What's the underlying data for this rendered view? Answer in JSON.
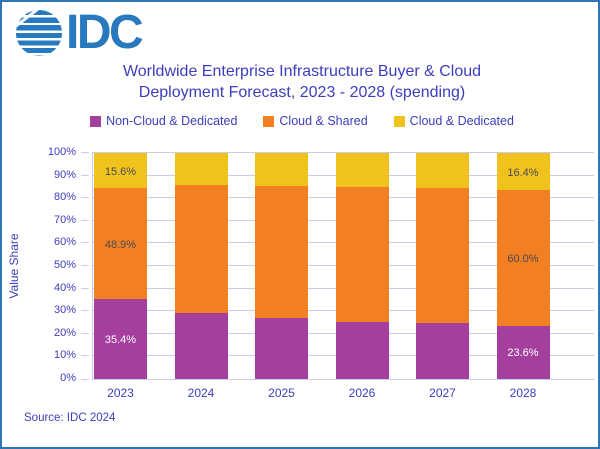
{
  "logo": {
    "text": "IDC"
  },
  "title": {
    "line1": "Worldwide Enterprise Infrastructure Buyer & Cloud",
    "line2": "Deployment Forecast, 2023 - 2028 (spending)"
  },
  "source": "Source: IDC 2024",
  "colors": {
    "border": "#2E75B6",
    "logo_blue": "#2879BD",
    "text_blue": "#3D3DBD",
    "gridline": "#C9CCEE",
    "purple": "#A53F9E",
    "orange": "#F28022",
    "yellow": "#EFC31B",
    "dark_label": "#4A4A55",
    "white_label": "#FFFFFF"
  },
  "chart_data": {
    "type": "bar",
    "subtype": "stacked-100-percent",
    "title": "Worldwide Enterprise Infrastructure Buyer & Cloud Deployment Forecast, 2023 - 2028 (spending)",
    "xlabel": "",
    "ylabel": "Value Share",
    "ylim": [
      0,
      100
    ],
    "yticks": [
      "0%",
      "10%",
      "20%",
      "30%",
      "40%",
      "50%",
      "60%",
      "70%",
      "80%",
      "90%",
      "100%"
    ],
    "grid": true,
    "legend_position": "top",
    "categories": [
      "2023",
      "2024",
      "2025",
      "2026",
      "2027",
      "2028"
    ],
    "series": [
      {
        "name": "Non-Cloud & Dedicated",
        "color": "#A53F9E",
        "label_color": "#FFFFFF",
        "values": [
          35.4,
          29.2,
          26.8,
          25.4,
          24.6,
          23.6
        ],
        "shown_labels": {
          "2023": "35.4%",
          "2028": "23.6%"
        }
      },
      {
        "name": "Cloud & Shared",
        "color": "#F28022",
        "label_color": "#4A4A55",
        "values": [
          48.9,
          56.8,
          58.6,
          59.6,
          59.8,
          60.0
        ],
        "shown_labels": {
          "2023": "48.9%",
          "2028": "60.0%"
        }
      },
      {
        "name": "Cloud & Dedicated",
        "color": "#EFC31B",
        "label_color": "#4A4A55",
        "values": [
          15.6,
          14.0,
          14.6,
          15.0,
          15.6,
          16.4
        ],
        "shown_labels": {
          "2023": "15.6%",
          "2028": "16.4%"
        }
      }
    ]
  }
}
